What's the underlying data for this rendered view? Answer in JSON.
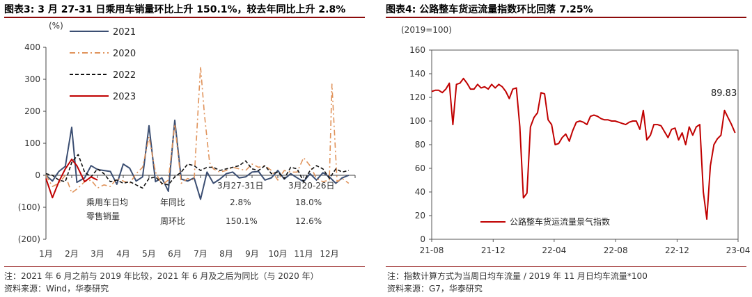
{
  "panels": [
    {
      "title": "图表3:  3 月 27-31 日乘用车销量环比上升 150.1%，较去年同比上升 2.8%",
      "notes": [
        "注：2021 年 6 月之前与 2019 年比较，2021 年 6 月及之后为同比（与 2020 年）",
        "资料来源：Wind，华泰研究"
      ]
    },
    {
      "title": "图表4:  公路整车货运流量指数环比回落 7.25%",
      "notes": [
        "注：指数计算方式为当周日均车流量 / 2019 年 11 月日均车流量*100",
        "资料来源：G7，华泰研究"
      ]
    }
  ],
  "chart_data": [
    {
      "type": "line",
      "unit_label": "(%)",
      "ylim": [
        -200,
        400
      ],
      "yticks": [
        400,
        300,
        200,
        100,
        0,
        -100,
        -200
      ],
      "ytick_labels": [
        "400",
        "300",
        "200",
        "100",
        "0",
        "(100)",
        "(200)"
      ],
      "x_range": [
        1,
        13
      ],
      "xtick_labels": [
        "1月",
        "2月",
        "3月",
        "4月",
        "5月",
        "6月",
        "7月",
        "8月",
        "9月",
        "10月",
        "11月",
        "12月"
      ],
      "legend": "top-left",
      "series": [
        {
          "name": "2021",
          "color": "#3b4e72",
          "dash": "solid",
          "x": [
            1,
            1.25,
            1.5,
            1.75,
            2,
            2.2,
            2.5,
            2.75,
            3,
            3.25,
            3.5,
            3.75,
            4,
            4.25,
            4.5,
            4.75,
            5,
            5.25,
            5.5,
            5.75,
            6,
            6.25,
            6.5,
            6.75,
            7,
            7.25,
            7.5,
            7.75,
            8,
            8.25,
            8.5,
            8.75,
            9,
            9.25,
            9.5,
            9.75,
            10,
            10.25,
            10.5,
            10.75,
            11,
            11.25,
            11.5,
            11.75,
            12,
            12.25,
            12.5,
            12.75
          ],
          "y": [
            0,
            -18,
            12,
            28,
            150,
            -22,
            -8,
            30,
            18,
            15,
            12,
            -28,
            35,
            22,
            -18,
            -5,
            155,
            -20,
            -8,
            -50,
            172,
            -12,
            -18,
            -8,
            -75,
            10,
            -25,
            -12,
            5,
            10,
            -8,
            -5,
            10,
            12,
            -15,
            -8,
            15,
            -12,
            5,
            -8,
            -20,
            5,
            -15,
            8,
            -5,
            -25,
            -8,
            0
          ]
        },
        {
          "name": "2020",
          "color": "#e0935b",
          "dash": "dashdot",
          "x": [
            1,
            1.25,
            1.5,
            1.75,
            2,
            2.25,
            2.5,
            2.75,
            3,
            3.25,
            3.5,
            3.75,
            4,
            4.25,
            4.5,
            4.75,
            5,
            5.25,
            5.5,
            5.75,
            6,
            6.25,
            6.5,
            6.75,
            7,
            7.15,
            7.35,
            7.5,
            7.75,
            8,
            8.25,
            8.5,
            8.75,
            9,
            9.25,
            9.5,
            9.75,
            10,
            10.25,
            10.5,
            10.75,
            11,
            11.25,
            11.5,
            11.75,
            12,
            12.1,
            12.3,
            12.5,
            12.75
          ],
          "y": [
            0,
            -35,
            -25,
            0,
            -55,
            -40,
            -20,
            -15,
            -40,
            -30,
            -35,
            -10,
            -18,
            -25,
            5,
            25,
            120,
            10,
            -30,
            -15,
            160,
            -25,
            -10,
            -15,
            340,
            190,
            40,
            20,
            10,
            15,
            25,
            20,
            15,
            35,
            25,
            30,
            15,
            -15,
            15,
            10,
            10,
            55,
            30,
            -10,
            -20,
            -15,
            285,
            -20,
            -10,
            -25
          ]
        },
        {
          "name": "2022",
          "color": "#111111",
          "dash": "dashed",
          "x": [
            1,
            1.25,
            1.5,
            1.75,
            2,
            2.25,
            2.5,
            2.75,
            3,
            3.25,
            3.5,
            3.75,
            4,
            4.25,
            4.5,
            4.75,
            5,
            5.25,
            5.5,
            5.75,
            6,
            6.25,
            6.5,
            6.75,
            7,
            7.25,
            7.5,
            7.75,
            8,
            8.25,
            8.5,
            8.75,
            9,
            9.25,
            9.5,
            9.75,
            10,
            10.25,
            10.5,
            10.75,
            11,
            11.25,
            11.5,
            11.75,
            12,
            12.25,
            12.5,
            12.75
          ],
          "y": [
            5,
            0,
            -15,
            -20,
            40,
            65,
            10,
            -5,
            20,
            5,
            -20,
            -15,
            -25,
            -20,
            -30,
            -40,
            -10,
            -5,
            -25,
            -30,
            -5,
            10,
            35,
            30,
            15,
            25,
            25,
            15,
            20,
            25,
            30,
            45,
            20,
            15,
            30,
            5,
            10,
            -10,
            25,
            20,
            -20,
            15,
            30,
            20,
            -10,
            20,
            10,
            15
          ]
        },
        {
          "name": "2023",
          "color": "#c00000",
          "dash": "solid",
          "x": [
            1,
            1.25,
            1.5,
            1.75,
            2,
            2.2,
            2.5,
            2.75,
            3
          ],
          "y": [
            -10,
            -70,
            -20,
            20,
            50,
            30,
            -20,
            -5,
            -15
          ]
        }
      ],
      "annotation_table": {
        "row_header": [
          "乘用车日均",
          "零售销量"
        ],
        "col_headers": [
          "3月27-31日",
          "3月20-26日"
        ],
        "rows": [
          {
            "label": "年同比",
            "values": [
              "2.8%",
              "18.0%"
            ]
          },
          {
            "label": "周环比",
            "values": [
              "150.1%",
              "12.6%"
            ]
          }
        ]
      }
    },
    {
      "type": "line",
      "unit_label": "(2019=100)",
      "ylim": [
        0,
        160
      ],
      "yticks": [
        160,
        140,
        120,
        100,
        80,
        60,
        40,
        20,
        0
      ],
      "x_range": [
        "2021-08",
        "2023-04"
      ],
      "xtick_labels": [
        "21-08",
        "21-12",
        "22-04",
        "22-08",
        "22-12",
        "23-04"
      ],
      "legend": "bottom-center",
      "series": [
        {
          "name": "公路整车货运流量景气指数",
          "color": "#c00000",
          "x": [
            "2021-08-01",
            "2021-08-08",
            "2021-08-15",
            "2021-08-22",
            "2021-08-29",
            "2021-09-05",
            "2021-09-12",
            "2021-09-19",
            "2021-09-26",
            "2021-10-03",
            "2021-10-10",
            "2021-10-17",
            "2021-10-24",
            "2021-10-31",
            "2021-11-07",
            "2021-11-14",
            "2021-11-21",
            "2021-11-28",
            "2021-12-05",
            "2021-12-12",
            "2021-12-19",
            "2021-12-26",
            "2022-01-02",
            "2022-01-09",
            "2022-01-16",
            "2022-01-23",
            "2022-01-30",
            "2022-02-06",
            "2022-02-13",
            "2022-02-20",
            "2022-02-27",
            "2022-03-06",
            "2022-03-13",
            "2022-03-20",
            "2022-03-27",
            "2022-04-03",
            "2022-04-10",
            "2022-04-17",
            "2022-04-24",
            "2022-05-01",
            "2022-05-08",
            "2022-05-15",
            "2022-05-22",
            "2022-05-29",
            "2022-06-05",
            "2022-06-12",
            "2022-06-19",
            "2022-06-26",
            "2022-07-03",
            "2022-07-10",
            "2022-07-17",
            "2022-07-24",
            "2022-07-31",
            "2022-08-07",
            "2022-08-14",
            "2022-08-21",
            "2022-08-28",
            "2022-09-04",
            "2022-09-11",
            "2022-09-18",
            "2022-09-25",
            "2022-10-02",
            "2022-10-09",
            "2022-10-16",
            "2022-10-23",
            "2022-10-30",
            "2022-11-06",
            "2022-11-13",
            "2022-11-20",
            "2022-11-27",
            "2022-12-04",
            "2022-12-11",
            "2022-12-18",
            "2022-12-25",
            "2023-01-01",
            "2023-01-08",
            "2023-01-15",
            "2023-01-22",
            "2023-01-29",
            "2023-02-05",
            "2023-02-12",
            "2023-02-19",
            "2023-02-26",
            "2023-03-05",
            "2023-03-12",
            "2023-03-19",
            "2023-03-26"
          ],
          "y": [
            125,
            126,
            126,
            124,
            127,
            132,
            97,
            131,
            132,
            136,
            132,
            127,
            127,
            131,
            128,
            129,
            127,
            131,
            128,
            131,
            129,
            125,
            119,
            127,
            128,
            95,
            35,
            39,
            95,
            103,
            107,
            124,
            123,
            101,
            97,
            80,
            81,
            86,
            89,
            83,
            92,
            99,
            100,
            99,
            97,
            104,
            105,
            104,
            102,
            101,
            101,
            100,
            100,
            99,
            98,
            97,
            99,
            100,
            100,
            93,
            109,
            84,
            88,
            97,
            97,
            96,
            91,
            86,
            93,
            94,
            84,
            90,
            80,
            95,
            88,
            95,
            97,
            40,
            17,
            62,
            80,
            85,
            88,
            109,
            103,
            97,
            90
          ]
        }
      ],
      "annotations": [
        {
          "text": "89.83"
        }
      ]
    }
  ]
}
